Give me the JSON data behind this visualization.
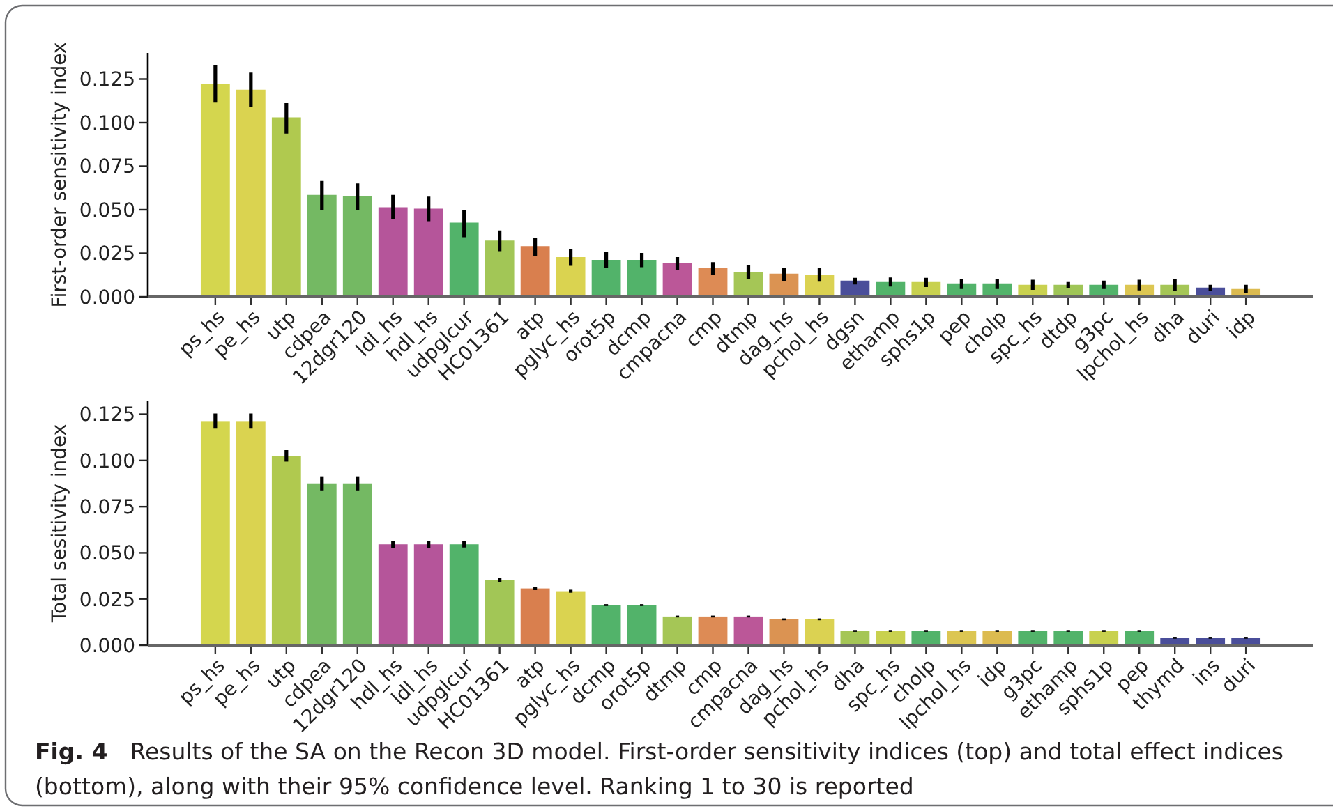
{
  "chart_data": [
    {
      "type": "bar",
      "ylabel": "First-order sensitivity index",
      "categories": [
        "ps_hs",
        "pe_hs",
        "utp",
        "cdpea",
        "12dgr120",
        "ldl_hs",
        "hdl_hs",
        "udpglcur",
        "HC01361",
        "atp",
        "pglyc_hs",
        "orot5p",
        "dcmp",
        "cmpacna",
        "cmp",
        "dtmp",
        "dag_hs",
        "pchol_hs",
        "dgsn",
        "ethamp",
        "sphs1p",
        "pep",
        "cholp",
        "spc_hs",
        "dtdp",
        "g3pc",
        "lpchol_hs",
        "dha",
        "duri",
        "idp"
      ],
      "values": [
        0.1221,
        0.1189,
        0.103,
        0.0585,
        0.0577,
        0.0514,
        0.0506,
        0.0426,
        0.0323,
        0.0291,
        0.0228,
        0.0212,
        0.0212,
        0.0196,
        0.0164,
        0.0141,
        0.0133,
        0.0125,
        0.0093,
        0.0085,
        0.0085,
        0.0077,
        0.0077,
        0.0069,
        0.0069,
        0.0069,
        0.0069,
        0.0069,
        0.0053,
        0.0045
      ],
      "errors": [
        [
          0.1115,
          0.133
        ],
        [
          0.1088,
          0.1287
        ],
        [
          0.0937,
          0.1112
        ],
        [
          0.05,
          0.0665
        ],
        [
          0.0496,
          0.0651
        ],
        [
          0.0448,
          0.0585
        ],
        [
          0.0434,
          0.0575
        ],
        [
          0.0342,
          0.0498
        ],
        [
          0.0262,
          0.0381
        ],
        [
          0.0236,
          0.0339
        ],
        [
          0.0178,
          0.0276
        ],
        [
          0.0164,
          0.026
        ],
        [
          0.017,
          0.0252
        ],
        [
          0.0156,
          0.0228
        ],
        [
          0.0127,
          0.0199
        ],
        [
          0.0103,
          0.018
        ],
        [
          0.0091,
          0.0164
        ],
        [
          0.0087,
          0.0164
        ],
        [
          0.0071,
          0.0109
        ],
        [
          0.0059,
          0.0111
        ],
        [
          0.0056,
          0.0109
        ],
        [
          0.0045,
          0.0101
        ],
        [
          0.0045,
          0.0101
        ],
        [
          0.004,
          0.0098
        ],
        [
          0.0051,
          0.0085
        ],
        [
          0.0045,
          0.0093
        ],
        [
          0.0037,
          0.0098
        ],
        [
          0.0035,
          0.0101
        ],
        [
          0.0035,
          0.0069
        ],
        [
          0.002,
          0.0069
        ]
      ],
      "colors": [
        "#d4d64e",
        "#dad350",
        "#b0c94f",
        "#74b963",
        "#74b963",
        "#b5559a",
        "#b5559a",
        "#52b36a",
        "#a2c656",
        "#d97f4e",
        "#dad350",
        "#52b36a",
        "#52b36a",
        "#bb5798",
        "#dd8b55",
        "#a5c656",
        "#db9352",
        "#dbd252",
        "#4a4e9a",
        "#52b36a",
        "#c8d14f",
        "#52b36a",
        "#52b36a",
        "#c9d14f",
        "#9fc557",
        "#52b36a",
        "#dcc652",
        "#a5c656",
        "#4a4e9a",
        "#dcbb50"
      ],
      "ylim": [
        0,
        0.14
      ],
      "yticks": [
        {
          "value": 0,
          "label": "0.000"
        },
        {
          "value": 0.025,
          "label": "0.025"
        },
        {
          "value": 0.05,
          "label": "0.050"
        },
        {
          "value": 0.075,
          "label": "0.075"
        },
        {
          "value": 0.1,
          "label": "0.100"
        },
        {
          "value": 0.125,
          "label": "0.125"
        }
      ]
    },
    {
      "type": "bar",
      "ylabel": "Total sesitivity index",
      "categories": [
        "ps_hs",
        "pe_hs",
        "utp",
        "cdpea",
        "12dgr120",
        "hdl_hs",
        "ldl_hs",
        "udpglcur",
        "HC01361",
        "atp",
        "pglyc_hs",
        "dcmp",
        "orot5p",
        "dtmp",
        "cmp",
        "cmpacna",
        "dag_hs",
        "pchol_hs",
        "dha",
        "spc_hs",
        "cholp",
        "lpchol_hs",
        "idp",
        "g3pc",
        "ethamp",
        "sphs1p",
        "pep",
        "thymd",
        "ins",
        "duri"
      ],
      "values": [
        0.1213,
        0.1213,
        0.1025,
        0.0876,
        0.0876,
        0.0546,
        0.0546,
        0.0546,
        0.0352,
        0.0307,
        0.0292,
        0.0217,
        0.0217,
        0.0155,
        0.0155,
        0.0155,
        0.014,
        0.014,
        0.0077,
        0.0077,
        0.0077,
        0.0077,
        0.0077,
        0.0077,
        0.0077,
        0.0077,
        0.0077,
        0.004,
        0.004,
        0.004
      ],
      "errors": [
        0.0041,
        0.0041,
        0.0031,
        0.0038,
        0.0038,
        0.0019,
        0.0019,
        0.0017,
        0.001,
        0.0009,
        0.0008,
        0.0005,
        0.0005,
        0.0005,
        0.0005,
        0.0005,
        0.0005,
        0.0005,
        0.0005,
        0.0005,
        0.0005,
        0.0005,
        0.0005,
        0.0005,
        0.0005,
        0.0005,
        0.0005,
        0.0005,
        0.0005,
        0.0005
      ],
      "colors": [
        "#d4d64e",
        "#dad350",
        "#b0c94f",
        "#74b963",
        "#74b963",
        "#b5559a",
        "#b5559a",
        "#52b36a",
        "#a2c656",
        "#d97f4e",
        "#dad350",
        "#52b36a",
        "#52b36a",
        "#a5c656",
        "#dd8b55",
        "#bb5798",
        "#db9352",
        "#dbd252",
        "#a5c656",
        "#c9d14f",
        "#52b36a",
        "#dcc652",
        "#dcbb50",
        "#52b36a",
        "#52b36a",
        "#c8d14f",
        "#52b36a",
        "#4a4e9a",
        "#4a4e9a",
        "#4a4e9a"
      ],
      "ylim": [
        0,
        0.132
      ],
      "yticks": [
        {
          "value": 0,
          "label": "0.000"
        },
        {
          "value": 0.025,
          "label": "0.025"
        },
        {
          "value": 0.05,
          "label": "0.050"
        },
        {
          "value": 0.075,
          "label": "0.075"
        },
        {
          "value": 0.1,
          "label": "0.100"
        },
        {
          "value": 0.125,
          "label": "0.125"
        }
      ],
      "annotations": [
        "Fig. 4 Results of the SA on the Recon 3D model. First-order sensitivity indices (top) and total effect indices (bottom), along with their 95% confidence level. Ranking 1 to 30 is reported"
      ]
    }
  ]
}
